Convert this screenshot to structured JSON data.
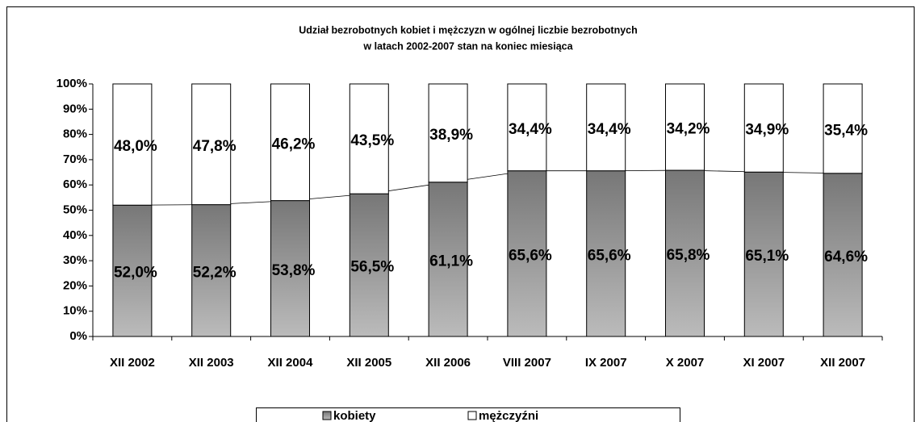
{
  "chart_data": {
    "type": "stacked_bar",
    "title": "Udział bezrobotnych kobiet i mężczyzn w ogólnej liczbie  bezrobotnych",
    "subtitle": "w latach 2002-2007 stan na koniec miesiąca",
    "categories": [
      "XII 2002",
      "XII 2003",
      "XII 2004",
      "XII 2005",
      "XII 2006",
      "VIII 2007",
      "IX 2007",
      "X 2007",
      "XI 2007",
      "XII 2007"
    ],
    "series": [
      {
        "name": "kobiety",
        "color": "#999999",
        "values": [
          52.0,
          52.2,
          53.8,
          56.5,
          61.1,
          65.6,
          65.6,
          65.8,
          65.1,
          64.6
        ],
        "value_labels": [
          "52,0%",
          "52,2%",
          "53,8%",
          "56,5%",
          "61,1%",
          "65,6%",
          "65,6%",
          "65,8%",
          "65,1%",
          "64,6%"
        ]
      },
      {
        "name": "mężczyźni",
        "color": "#ffffff",
        "values": [
          48.0,
          47.8,
          46.2,
          43.5,
          38.9,
          34.4,
          34.4,
          34.2,
          34.9,
          35.4
        ],
        "value_labels": [
          "48,0%",
          "47,8%",
          "46,2%",
          "43,5%",
          "38,9%",
          "34,4%",
          "34,4%",
          "34,2%",
          "34,9%",
          "35,4%"
        ]
      }
    ],
    "ylim": [
      0,
      100
    ],
    "yticks": [
      {
        "value": 0,
        "label": "0%"
      },
      {
        "value": 10,
        "label": "10%"
      },
      {
        "value": 20,
        "label": "20%"
      },
      {
        "value": 30,
        "label": "30%"
      },
      {
        "value": 40,
        "label": "40%"
      },
      {
        "value": 50,
        "label": "50%"
      },
      {
        "value": 60,
        "label": "60%"
      },
      {
        "value": 70,
        "label": "70%"
      },
      {
        "value": 80,
        "label": "80%"
      },
      {
        "value": 90,
        "label": "90%"
      },
      {
        "value": 100,
        "label": "100%"
      }
    ],
    "grid": false,
    "legend": "bottom"
  }
}
